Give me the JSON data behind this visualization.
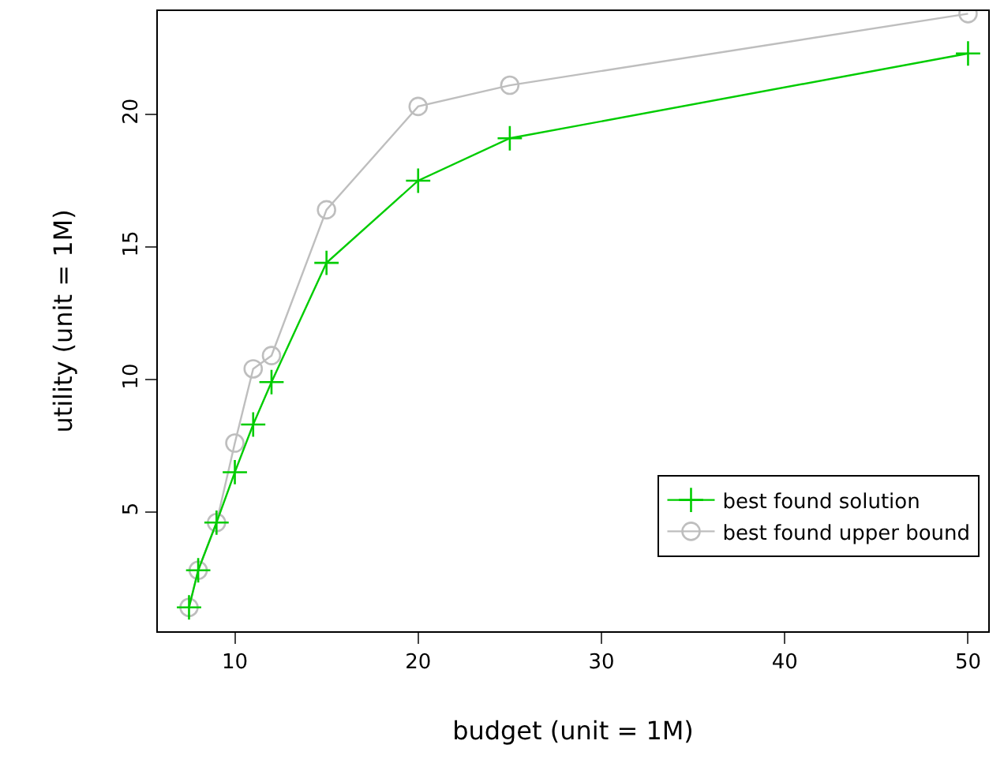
{
  "chart_data": {
    "type": "line",
    "xlabel": "budget (unit = 1M)",
    "ylabel": "utility (unit = 1M)",
    "x": [
      7.5,
      8,
      9,
      10,
      11,
      12,
      15,
      20,
      25,
      50
    ],
    "series": [
      {
        "name": "best found solution",
        "color": "#00cc00",
        "marker": "cross",
        "values": [
          1.4,
          2.8,
          4.6,
          6.5,
          8.3,
          9.9,
          14.4,
          17.5,
          19.1,
          22.3
        ]
      },
      {
        "name": "best found upper bound",
        "color": "#bebebe",
        "marker": "circle",
        "values": [
          1.4,
          2.8,
          4.6,
          7.6,
          10.4,
          10.9,
          16.4,
          20.3,
          21.1,
          23.8
        ]
      }
    ],
    "xlim": [
      5.8,
      51.1
    ],
    "ylim": [
      0.5,
      23.9
    ],
    "xticks": [
      10,
      20,
      30,
      40,
      50
    ],
    "yticks": [
      5,
      10,
      15,
      20
    ],
    "grid": false,
    "legend": "bottom right",
    "line_style": "solid"
  }
}
